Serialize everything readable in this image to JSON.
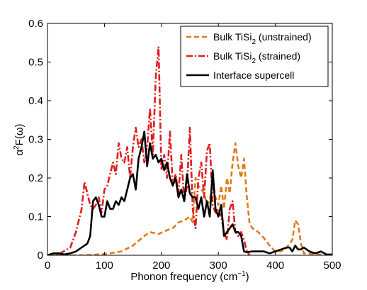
{
  "chart_data": {
    "type": "line",
    "xlabel_main": "Phonon frequency (cm",
    "xlabel_sup": "−1",
    "xlabel_end": ")",
    "ylabel_a": "α",
    "ylabel_sup": "2",
    "ylabel_rest": "F(ω)",
    "xlim": [
      0,
      500
    ],
    "ylim": [
      0,
      0.6
    ],
    "xticks": [
      "0",
      "100",
      "200",
      "300",
      "400",
      "500"
    ],
    "yticks": [
      "0",
      "0.1",
      "0.2",
      "0.3",
      "0.4",
      "0.5",
      "0.6"
    ],
    "legend_position": "top-right",
    "series": [
      {
        "name_main": "Bulk TiSi",
        "name_sub": "2",
        "name_tail": " (unstrained)",
        "color": "#e07b1a",
        "style": "dashed",
        "x": [
          0,
          60,
          100,
          130,
          150,
          170,
          180,
          195,
          210,
          220,
          230,
          240,
          250,
          255,
          260,
          265,
          270,
          275,
          280,
          285,
          290,
          295,
          300,
          305,
          310,
          315,
          320,
          325,
          330,
          335,
          340,
          345,
          350,
          355,
          360,
          370,
          380,
          390,
          400,
          410,
          420,
          430,
          435,
          440,
          445,
          450,
          500
        ],
        "y": [
          0,
          0,
          0.003,
          0.01,
          0.025,
          0.05,
          0.06,
          0.055,
          0.065,
          0.07,
          0.085,
          0.09,
          0.1,
          0.085,
          0.2,
          0.18,
          0.17,
          0.16,
          0.13,
          0.14,
          0.19,
          0.15,
          0.13,
          0.18,
          0.12,
          0.2,
          0.16,
          0.24,
          0.29,
          0.23,
          0.2,
          0.25,
          0.15,
          0.08,
          0.07,
          0.06,
          0.045,
          0.025,
          0.01,
          0.01,
          0.02,
          0.04,
          0.09,
          0.08,
          0.03,
          0.005,
          0
        ]
      },
      {
        "name_main": "Bulk TiSi",
        "name_sub": "2",
        "name_tail": " (strained)",
        "color": "#dd1f1f",
        "style": "dashdot",
        "x": [
          0,
          20,
          40,
          50,
          60,
          65,
          70,
          75,
          80,
          85,
          90,
          95,
          100,
          105,
          110,
          115,
          120,
          125,
          130,
          135,
          140,
          145,
          150,
          155,
          160,
          165,
          170,
          175,
          180,
          185,
          190,
          195,
          200,
          205,
          210,
          215,
          220,
          225,
          230,
          235,
          240,
          245,
          250,
          255,
          260,
          265,
          270,
          275,
          280,
          285,
          290,
          295,
          300,
          305,
          310,
          315,
          320,
          325,
          330,
          335,
          340,
          345,
          350,
          355
        ],
        "y": [
          0,
          0.003,
          0.02,
          0.06,
          0.12,
          0.19,
          0.16,
          0.13,
          0.12,
          0.13,
          0.15,
          0.11,
          0.17,
          0.18,
          0.21,
          0.24,
          0.21,
          0.29,
          0.25,
          0.24,
          0.28,
          0.2,
          0.28,
          0.33,
          0.28,
          0.3,
          0.24,
          0.28,
          0.38,
          0.26,
          0.46,
          0.54,
          0.22,
          0.26,
          0.2,
          0.32,
          0.18,
          0.21,
          0.16,
          0.26,
          0.14,
          0.18,
          0.33,
          0.12,
          0.07,
          0.2,
          0.24,
          0.15,
          0.27,
          0.29,
          0.13,
          0.11,
          0.12,
          0.1,
          0.06,
          0.04,
          0.12,
          0.14,
          0.06,
          0.05,
          0.06,
          0.04,
          0.01,
          0
        ]
      },
      {
        "name_main": "Interface supercell",
        "name_sub": "",
        "name_tail": "",
        "color": "#000000",
        "style": "solid",
        "x": [
          0,
          10,
          20,
          30,
          40,
          50,
          60,
          70,
          75,
          80,
          85,
          90,
          95,
          100,
          105,
          110,
          115,
          120,
          125,
          130,
          135,
          140,
          145,
          150,
          155,
          160,
          165,
          170,
          175,
          180,
          185,
          190,
          195,
          200,
          205,
          210,
          215,
          220,
          225,
          230,
          235,
          240,
          245,
          250,
          255,
          260,
          265,
          270,
          275,
          280,
          285,
          290,
          295,
          300,
          305,
          310,
          315,
          320,
          325,
          330,
          335,
          340,
          345,
          350,
          360,
          370,
          380,
          390,
          400,
          410,
          420,
          425,
          430,
          435,
          440,
          445,
          450,
          460,
          470,
          480,
          490,
          500
        ],
        "y": [
          0,
          0.005,
          0.005,
          0.002,
          0.005,
          0.01,
          0.02,
          0.03,
          0.05,
          0.14,
          0.15,
          0.13,
          0.1,
          0.1,
          0.14,
          0.12,
          0.12,
          0.14,
          0.13,
          0.15,
          0.14,
          0.17,
          0.2,
          0.21,
          0.17,
          0.25,
          0.28,
          0.32,
          0.23,
          0.29,
          0.25,
          0.26,
          0.24,
          0.25,
          0.22,
          0.24,
          0.2,
          0.18,
          0.2,
          0.15,
          0.17,
          0.14,
          0.21,
          0.16,
          0.15,
          0.15,
          0.12,
          0.15,
          0.1,
          0.14,
          0.1,
          0.22,
          0.12,
          0.1,
          0.13,
          0.05,
          0.06,
          0.07,
          0.08,
          0.06,
          0.06,
          0.05,
          0.01,
          0.008,
          0.01,
          0.01,
          0.01,
          0.005,
          0.01,
          0.015,
          0.02,
          0.02,
          0.01,
          0.025,
          0.015,
          0.015,
          0.02,
          0.01,
          0.005,
          0.01,
          0.002,
          0.002
        ]
      }
    ]
  }
}
